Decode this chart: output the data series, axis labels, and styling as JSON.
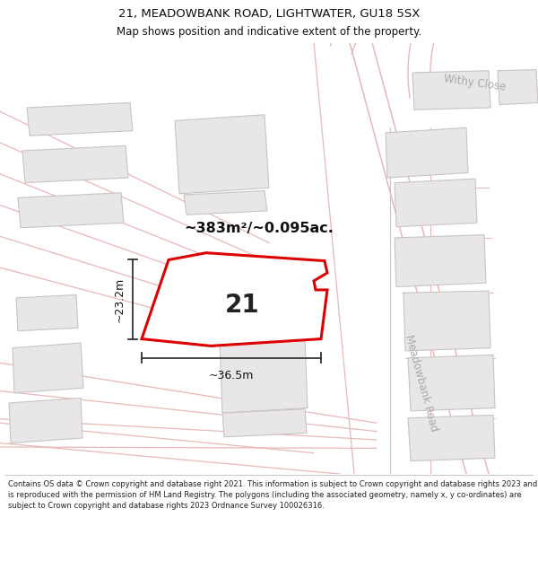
{
  "title_line1": "21, MEADOWBANK ROAD, LIGHTWATER, GU18 5SX",
  "title_line2": "Map shows position and indicative extent of the property.",
  "footer_text": "Contains OS data © Crown copyright and database right 2021. This information is subject to Crown copyright and database rights 2023 and is reproduced with the permission of HM Land Registry. The polygons (including the associated geometry, namely x, y co-ordinates) are subject to Crown copyright and database rights 2023 Ordnance Survey 100026316.",
  "area_label": "~383m²/~0.095ac.",
  "property_number": "21",
  "dim_width": "~36.5m",
  "dim_height": "~23.2m",
  "map_bg": "#f5f3f3",
  "road_line_color": "#e8b8b8",
  "building_fill": "#e8e6e6",
  "building_stroke": "#c8c4c4",
  "highlight_fill": "#ffffff",
  "highlight_stroke": "#dd0000",
  "text_color": "#111111",
  "label_color": "#aaaaaa",
  "withy_close_label": "Withy Close",
  "meadowbank_label": "Meadowbank Road",
  "fig_width": 6.0,
  "fig_height": 6.25,
  "dpi": 100
}
